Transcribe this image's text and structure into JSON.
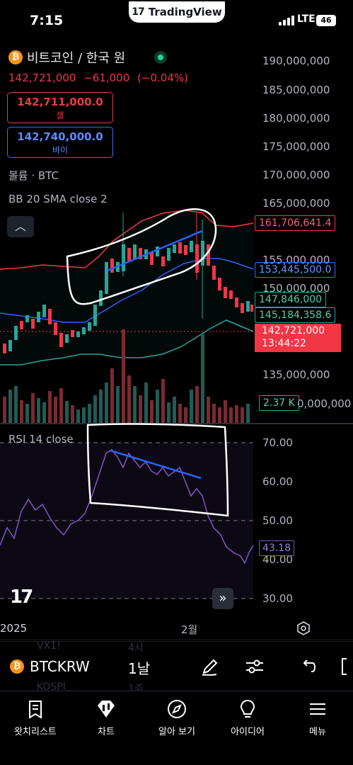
{
  "status": {
    "time": "7:15",
    "app_name": "TradingView",
    "network": "LTE",
    "battery": "46"
  },
  "symbol": {
    "title": "비트코인 / 한국 원",
    "last": "142,721,000",
    "change": "−61,000",
    "change_pct": "(−0.04%)",
    "sell_price": "142,711,000.0",
    "sell_label": "셀",
    "buy_price": "142,740,000.0",
    "buy_label": "바이"
  },
  "legends": {
    "volume": "볼륨 · BTC",
    "bb": "BB 20 SMA close 2",
    "rsi": "RSI 14 close"
  },
  "price_axis": {
    "labels": [
      "190,000,000",
      "185,000,000",
      "180,000,000",
      "175,000,000",
      "170,000,000",
      "165,000,000",
      "155,000,000",
      "150,000,000",
      "135,000,000",
      "0,000,000"
    ],
    "bb_upper": "161,706,641.4",
    "bb_basis": "153,445,500.0",
    "price_level": "147,846,000",
    "bb_lower": "145,184,358.6",
    "last_price": "142,721,000",
    "countdown": "13:44:22",
    "volume": "2.37 K"
  },
  "rsi_axis": {
    "labels": [
      "70.00",
      "60.00",
      "50.00",
      "40.00",
      "30.00"
    ],
    "value": "43.18"
  },
  "time_axis": {
    "labels": [
      "2025",
      "2월"
    ]
  },
  "toolbar": {
    "symbol": "BTCKRW",
    "interval": "1날",
    "ghost_1": "VX1!",
    "ghost_2": "4시",
    "ghost_3": "KOSPI",
    "ghost_4": "1주"
  },
  "nav": {
    "watchlist": "왓치리스트",
    "chart": "차트",
    "explore": "알아 보기",
    "ideas": "아이디어",
    "menu": "메뉴"
  },
  "colors": {
    "up": "#26a69a",
    "down": "#f23645",
    "bb_upper": "#f23645",
    "bb_basis": "#2962ff",
    "bb_lower": "#26a69a",
    "rsi": "#7e57c2"
  }
}
